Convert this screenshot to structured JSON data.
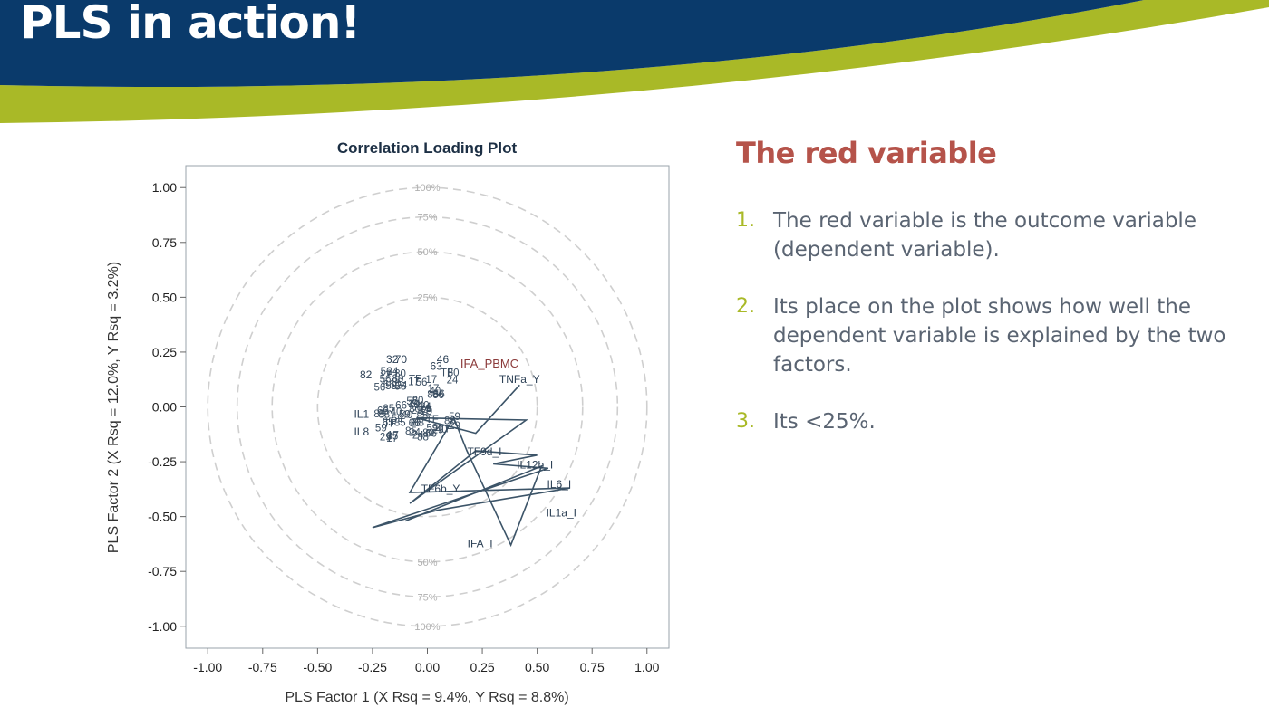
{
  "slide": {
    "title": "PLS in action!"
  },
  "colors": {
    "banner_blue": "#0a3a6b",
    "accent_green": "#a9b927",
    "heading_red": "#b5534a",
    "outcome_red": "#8b3a3a",
    "series_line": "#3c5468"
  },
  "side_panel": {
    "heading": "The red variable",
    "points": [
      {
        "num": "1.",
        "text": "The red variable is the outcome variable (dependent variable)."
      },
      {
        "num": "2.",
        "text": "Its place on the plot shows how well the dependent variable is explained by the two factors."
      },
      {
        "num": "3.",
        "text": "Its <25%."
      }
    ]
  },
  "chart_data": {
    "type": "scatter",
    "title": "Correlation Loading Plot",
    "xlabel": "PLS Factor 1 (X Rsq = 9.4%, Y Rsq = 8.8%)",
    "ylabel": "PLS Factor 2 (X Rsq = 12.0%, Y Rsq = 3.2%)",
    "xlim": [
      -1.1,
      1.1
    ],
    "ylim": [
      -1.1,
      1.1
    ],
    "xticks": [
      "-1.00",
      "-0.75",
      "-0.50",
      "-0.25",
      "0.00",
      "0.25",
      "0.50",
      "0.75",
      "1.00"
    ],
    "yticks": [
      "1.00",
      "0.75",
      "0.50",
      "0.25",
      "0.00",
      "-0.25",
      "-0.50",
      "-0.75",
      "-1.00"
    ],
    "grid": false,
    "circles": [
      {
        "radius": 1.0,
        "label": "100%"
      },
      {
        "radius": 0.866,
        "label": "75%"
      },
      {
        "radius": 0.707,
        "label": "50%"
      },
      {
        "radius": 0.5,
        "label": "25%"
      }
    ],
    "outcome_point": {
      "label": "IFA_PBMC",
      "x": 0.15,
      "y": 0.18
    },
    "labeled_points": [
      {
        "label": "32",
        "x": -0.16,
        "y": 0.2
      },
      {
        "label": "70",
        "x": -0.12,
        "y": 0.2
      },
      {
        "label": "46",
        "x": 0.07,
        "y": 0.2
      },
      {
        "label": "63",
        "x": 0.04,
        "y": 0.17
      },
      {
        "label": "82",
        "x": -0.28,
        "y": 0.13
      },
      {
        "label": "TNFa_Y",
        "x": 0.42,
        "y": 0.11
      },
      {
        "label": "IL1",
        "x": -0.3,
        "y": -0.05
      },
      {
        "label": "IL8",
        "x": -0.3,
        "y": -0.13
      },
      {
        "label": "TF9d_I",
        "x": 0.26,
        "y": -0.22
      },
      {
        "label": "IL12b_I",
        "x": 0.49,
        "y": -0.28
      },
      {
        "label": "IL6_I",
        "x": 0.6,
        "y": -0.37
      },
      {
        "label": "TF6b_Y",
        "x": 0.06,
        "y": -0.39
      },
      {
        "label": "IL1a_I",
        "x": 0.61,
        "y": -0.5
      },
      {
        "label": "IFA_I",
        "x": 0.24,
        "y": -0.64
      }
    ],
    "cluster_labels": [
      "80",
      "85",
      "29",
      "56",
      "TF",
      "24",
      "66",
      "88",
      "59",
      "40",
      "17"
    ],
    "series": [
      {
        "x": [
          0.42,
          0.22,
          -0.05,
          0.45,
          -0.08,
          0.22,
          0.5,
          0.3,
          0.55,
          -0.25,
          0.05,
          0.65,
          -0.08,
          0.12,
          0.18,
          0.38,
          0.52,
          -0.1
        ],
        "y": [
          0.1,
          -0.12,
          -0.05,
          -0.06,
          -0.44,
          -0.2,
          -0.22,
          -0.26,
          -0.28,
          -0.55,
          -0.47,
          -0.37,
          -0.39,
          -0.05,
          -0.2,
          -0.63,
          -0.27,
          -0.52
        ]
      }
    ]
  }
}
